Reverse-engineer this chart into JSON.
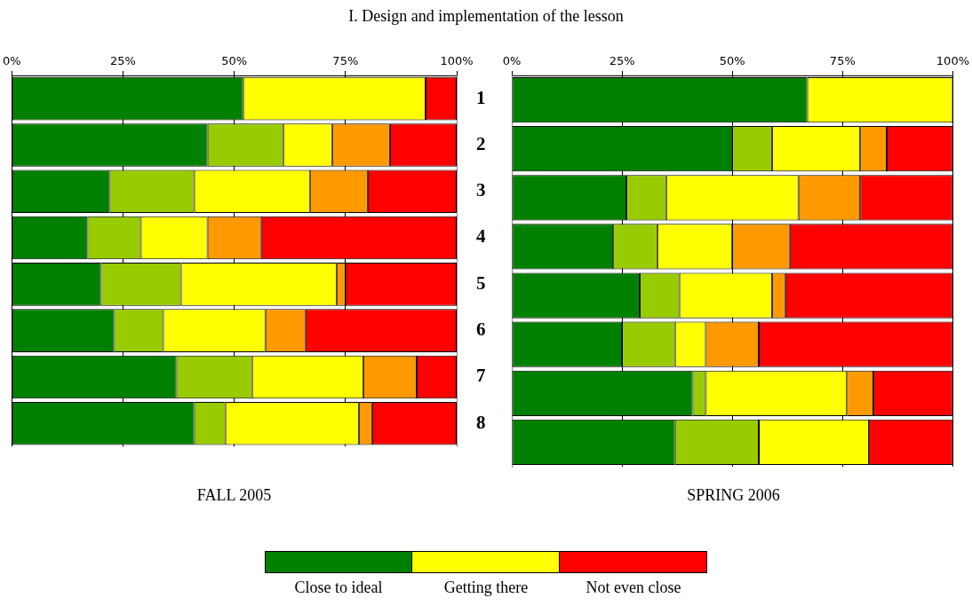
{
  "chart_data": [
    {
      "type": "bar",
      "orientation": "horizontal",
      "stacked": true,
      "title": "I. Design and implementation of the lesson",
      "xlabel": "FALL 2005",
      "categories": [
        "1",
        "2",
        "3",
        "4",
        "5",
        "6",
        "7",
        "8"
      ],
      "xlim": [
        0,
        100
      ],
      "xticks": [
        {
          "value": 0,
          "label": "0%"
        },
        {
          "value": 25,
          "label": "25%"
        },
        {
          "value": 50,
          "label": "50%"
        },
        {
          "value": 75,
          "label": "75%"
        },
        {
          "value": 100,
          "label": "100%"
        }
      ],
      "grid": "x",
      "legend": "bottom",
      "series": [
        {
          "name": "Close to ideal",
          "color": "#008000",
          "values": [
            52,
            44,
            22,
            17,
            20,
            23,
            37,
            41
          ]
        },
        {
          "color": "#99cc00",
          "values": [
            0,
            17,
            19,
            12,
            18,
            11,
            17,
            7
          ]
        },
        {
          "name": "Getting there",
          "color": "#ffff00",
          "values": [
            41,
            11,
            26,
            15,
            35,
            23,
            25,
            30
          ]
        },
        {
          "color": "#ff9900",
          "values": [
            0,
            13,
            13,
            12,
            2,
            9,
            12,
            3
          ]
        },
        {
          "name": "Not even close",
          "color": "#ff0000",
          "values": [
            7,
            15,
            20,
            44,
            25,
            34,
            9,
            19
          ]
        }
      ]
    },
    {
      "type": "bar",
      "orientation": "horizontal",
      "stacked": true,
      "xlabel": "SPRING 2006",
      "categories": [
        "1",
        "2",
        "3",
        "4",
        "5",
        "6",
        "7",
        "8"
      ],
      "tick_labels": "x",
      "xlim": [
        0,
        100
      ],
      "xticks": [
        {
          "value": 0,
          "label": "0%"
        },
        {
          "value": 25,
          "label": "25%"
        },
        {
          "value": 50,
          "label": "50%"
        },
        {
          "value": 75,
          "label": "75%"
        },
        {
          "value": 100,
          "label": "100%"
        }
      ],
      "grid": "x",
      "series": [
        {
          "color": "#008000",
          "values": [
            67,
            50,
            26,
            23,
            29,
            25,
            41,
            37
          ]
        },
        {
          "color": "#99cc00",
          "values": [
            0,
            9,
            9,
            10,
            9,
            12,
            3,
            19
          ]
        },
        {
          "color": "#ffff00",
          "values": [
            33,
            20,
            30,
            17,
            21,
            7,
            32,
            25
          ]
        },
        {
          "color": "#ff9900",
          "values": [
            0,
            6,
            14,
            13,
            3,
            12,
            6,
            0
          ]
        },
        {
          "color": "#ff0000",
          "values": [
            0,
            15,
            21,
            37,
            38,
            44,
            18,
            19
          ]
        }
      ]
    }
  ]
}
